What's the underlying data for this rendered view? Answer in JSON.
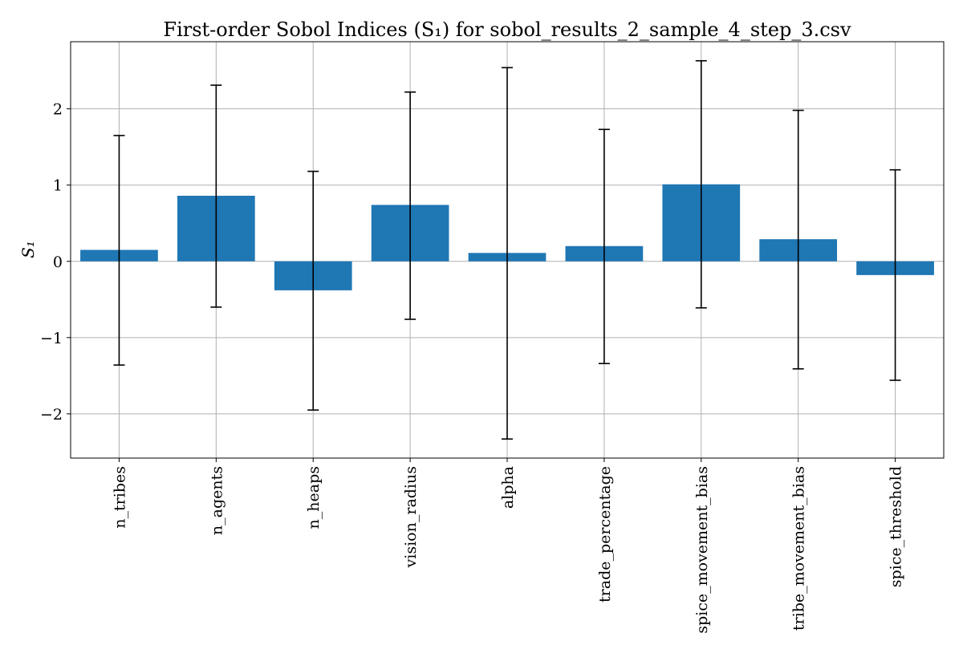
{
  "chart_data": {
    "type": "bar",
    "title": "First-order Sobol Indices (S₁) for sobol_results_2_sample_4_step_3.csv",
    "xlabel": "",
    "ylabel": "S₁",
    "categories": [
      "n_tribes",
      "n_agents",
      "n_heaps",
      "vision_radius",
      "alpha",
      "trade_percentage",
      "spice_movement_bias",
      "tribe_movement_bias",
      "spice_threshold"
    ],
    "series": [
      {
        "values": [
          0.15,
          0.86,
          -0.38,
          0.74,
          0.11,
          0.2,
          1.01,
          0.29,
          -0.18
        ],
        "error_low": [
          -1.36,
          -0.6,
          -1.95,
          -0.76,
          -2.33,
          -1.34,
          -0.61,
          -1.41,
          -1.56
        ],
        "error_high": [
          1.65,
          2.31,
          1.18,
          2.22,
          2.54,
          1.73,
          2.63,
          1.98,
          1.2
        ]
      }
    ],
    "ylim": [
      -2.58,
      2.88
    ],
    "yticks": [
      -2,
      -1,
      0,
      1,
      2
    ],
    "ytick_labels": [
      "−2",
      "−1",
      "0",
      "1",
      "2"
    ],
    "grid": true,
    "colors": {
      "bar": "#1f77b4",
      "error": "#000000"
    }
  }
}
